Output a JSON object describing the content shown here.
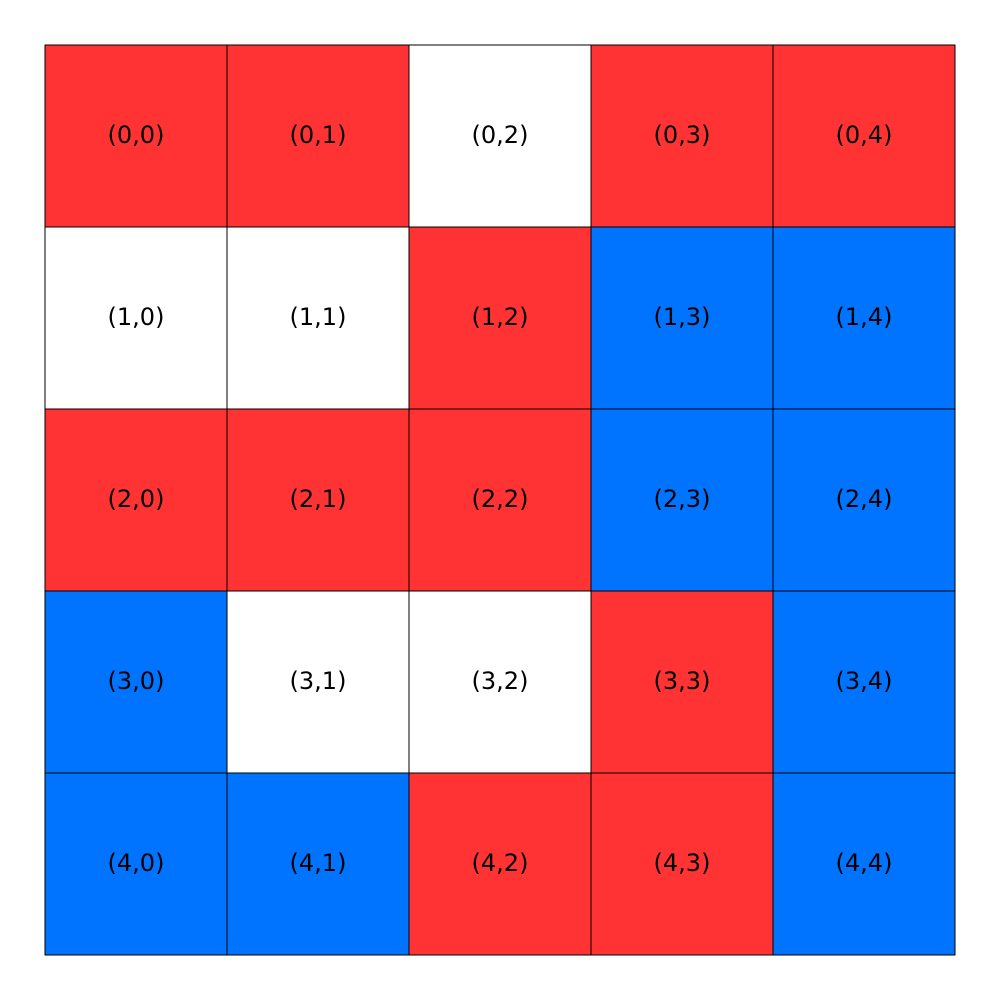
{
  "grid": {
    "rows": [
      [
        {
          "label": "(0,0)",
          "color": "#ff3333"
        },
        {
          "label": "(0,1)",
          "color": "#ff3333"
        },
        {
          "label": "(0,2)",
          "color": "#ffffff"
        },
        {
          "label": "(0,3)",
          "color": "#ff3333"
        },
        {
          "label": "(0,4)",
          "color": "#ff3333"
        }
      ],
      [
        {
          "label": "(1,0)",
          "color": "#ffffff"
        },
        {
          "label": "(1,1)",
          "color": "#ffffff"
        },
        {
          "label": "(1,2)",
          "color": "#ff3333"
        },
        {
          "label": "(1,3)",
          "color": "#0073ff"
        },
        {
          "label": "(1,4)",
          "color": "#0073ff"
        }
      ],
      [
        {
          "label": "(2,0)",
          "color": "#ff3333"
        },
        {
          "label": "(2,1)",
          "color": "#ff3333"
        },
        {
          "label": "(2,2)",
          "color": "#ff3333"
        },
        {
          "label": "(2,3)",
          "color": "#0073ff"
        },
        {
          "label": "(2,4)",
          "color": "#0073ff"
        }
      ],
      [
        {
          "label": "(3,0)",
          "color": "#0073ff"
        },
        {
          "label": "(3,1)",
          "color": "#ffffff"
        },
        {
          "label": "(3,2)",
          "color": "#ffffff"
        },
        {
          "label": "(3,3)",
          "color": "#ff3333"
        },
        {
          "label": "(3,4)",
          "color": "#0073ff"
        }
      ],
      [
        {
          "label": "(4,0)",
          "color": "#0073ff"
        },
        {
          "label": "(4,1)",
          "color": "#0073ff"
        },
        {
          "label": "(4,2)",
          "color": "#ff3333"
        },
        {
          "label": "(4,3)",
          "color": "#ff3333"
        },
        {
          "label": "(4,4)",
          "color": "#0073ff"
        }
      ]
    ]
  }
}
